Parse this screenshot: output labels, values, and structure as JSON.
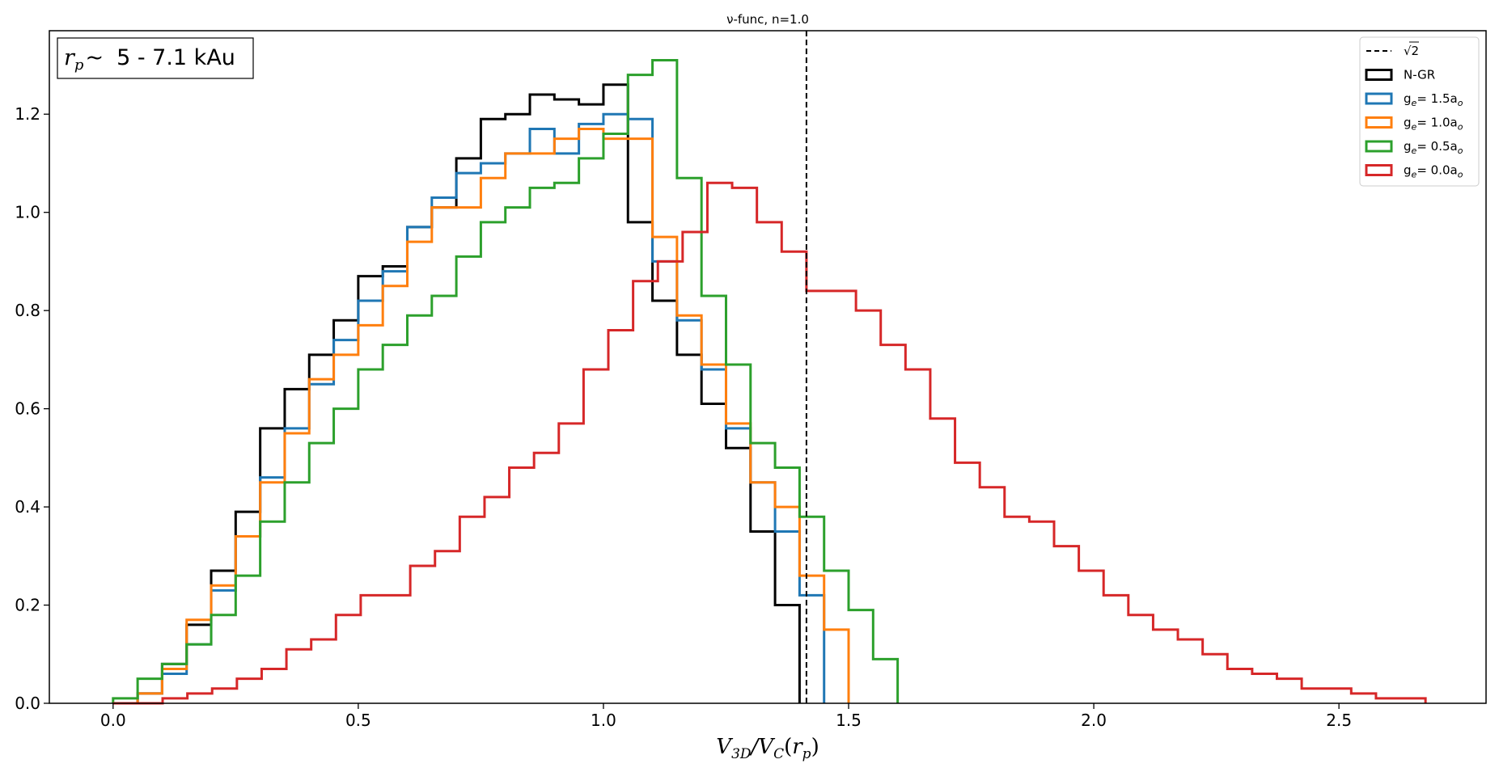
{
  "chart_data": {
    "type": "step-histogram",
    "title": "ν-func, n=1.0",
    "xlabel": "V3D/VC(rp)",
    "xlabel_parts": {
      "v": "V",
      "sub3d": "3D",
      "slash": "/",
      "vc": "V",
      "subc": "C",
      "open": "(",
      "r": "r",
      "subp": "p",
      "close": ")"
    },
    "ylabel": "",
    "xlim": [
      -0.13,
      2.8
    ],
    "ylim": [
      0.0,
      1.37
    ],
    "xticks": [
      0.0,
      0.5,
      1.0,
      1.5,
      2.0,
      2.5
    ],
    "xtick_labels": [
      "0.0",
      "0.5",
      "1.0",
      "1.5",
      "2.0",
      "2.5"
    ],
    "yticks": [
      0.0,
      0.2,
      0.4,
      0.6,
      0.8,
      1.0,
      1.2
    ],
    "ytick_labels": [
      "0.0",
      "0.2",
      "0.4",
      "0.6",
      "0.8",
      "1.0",
      "1.2"
    ],
    "grid": false,
    "legend_position": "top-right",
    "annotation": {
      "r": "r",
      "sub": "p",
      "tilde": "~",
      "range": "5 - 7.1 kAu"
    },
    "vline": {
      "x": 1.414,
      "style": "dashed",
      "color": "#000000",
      "legend": "√2"
    },
    "series": [
      {
        "name": "N-GR",
        "legend_base": "N-GR",
        "legend_sub": "",
        "legend_tail": "",
        "legend_tsub": "",
        "color": "#000000",
        "bin_width": 0.05,
        "start": 0.0,
        "values": [
          0.0,
          0.02,
          0.08,
          0.16,
          0.27,
          0.39,
          0.56,
          0.64,
          0.71,
          0.78,
          0.87,
          0.89,
          0.97,
          1.01,
          1.11,
          1.19,
          1.2,
          1.24,
          1.23,
          1.22,
          1.26,
          0.98,
          0.82,
          0.71,
          0.61,
          0.52,
          0.35,
          0.2
        ]
      },
      {
        "name": "ge= 1.5ao",
        "legend_base": "g",
        "legend_sub": "e",
        "legend_tail": "= 1.5a",
        "legend_tsub": "o",
        "color": "#1f77b4",
        "bin_width": 0.05,
        "start": 0.0,
        "values": [
          0.0,
          0.02,
          0.06,
          0.12,
          0.23,
          0.34,
          0.46,
          0.56,
          0.65,
          0.74,
          0.82,
          0.88,
          0.97,
          1.03,
          1.08,
          1.1,
          1.12,
          1.17,
          1.12,
          1.18,
          1.2,
          1.19,
          0.9,
          0.78,
          0.68,
          0.56,
          0.45,
          0.35,
          0.22
        ]
      },
      {
        "name": "ge= 1.0ao",
        "legend_base": "g",
        "legend_sub": "e",
        "legend_tail": "= 1.0a",
        "legend_tsub": "o",
        "color": "#ff7f0e",
        "bin_width": 0.05,
        "start": 0.0,
        "values": [
          0.0,
          0.02,
          0.07,
          0.17,
          0.24,
          0.34,
          0.45,
          0.55,
          0.66,
          0.71,
          0.77,
          0.85,
          0.94,
          1.01,
          1.01,
          1.07,
          1.12,
          1.12,
          1.15,
          1.17,
          1.15,
          1.15,
          0.95,
          0.79,
          0.69,
          0.57,
          0.45,
          0.4,
          0.26,
          0.15
        ]
      },
      {
        "name": "ge= 0.5ao",
        "legend_base": "g",
        "legend_sub": "e",
        "legend_tail": "= 0.5a",
        "legend_tsub": "o",
        "color": "#2ca02c",
        "bin_width": 0.05,
        "start": 0.0,
        "values": [
          0.01,
          0.05,
          0.08,
          0.12,
          0.18,
          0.26,
          0.37,
          0.45,
          0.53,
          0.6,
          0.68,
          0.73,
          0.79,
          0.83,
          0.91,
          0.98,
          1.01,
          1.05,
          1.06,
          1.11,
          1.16,
          1.28,
          1.31,
          1.07,
          0.83,
          0.69,
          0.53,
          0.48,
          0.38,
          0.27,
          0.19,
          0.09
        ]
      },
      {
        "name": "ge= 0.0ao",
        "legend_base": "g",
        "legend_sub": "e",
        "legend_tail": "= 0.0a",
        "legend_tsub": "o",
        "color": "#d62728",
        "bin_width": 0.0505,
        "start": 0.0,
        "values": [
          0.0,
          0.0,
          0.01,
          0.02,
          0.03,
          0.05,
          0.07,
          0.11,
          0.13,
          0.18,
          0.22,
          0.22,
          0.28,
          0.31,
          0.38,
          0.42,
          0.48,
          0.51,
          0.57,
          0.68,
          0.76,
          0.86,
          0.9,
          0.96,
          1.06,
          1.05,
          0.98,
          0.92,
          0.84,
          0.84,
          0.8,
          0.73,
          0.68,
          0.58,
          0.49,
          0.44,
          0.38,
          0.37,
          0.32,
          0.27,
          0.22,
          0.18,
          0.15,
          0.13,
          0.1,
          0.07,
          0.06,
          0.05,
          0.03,
          0.03,
          0.02,
          0.01,
          0.01
        ]
      }
    ]
  }
}
